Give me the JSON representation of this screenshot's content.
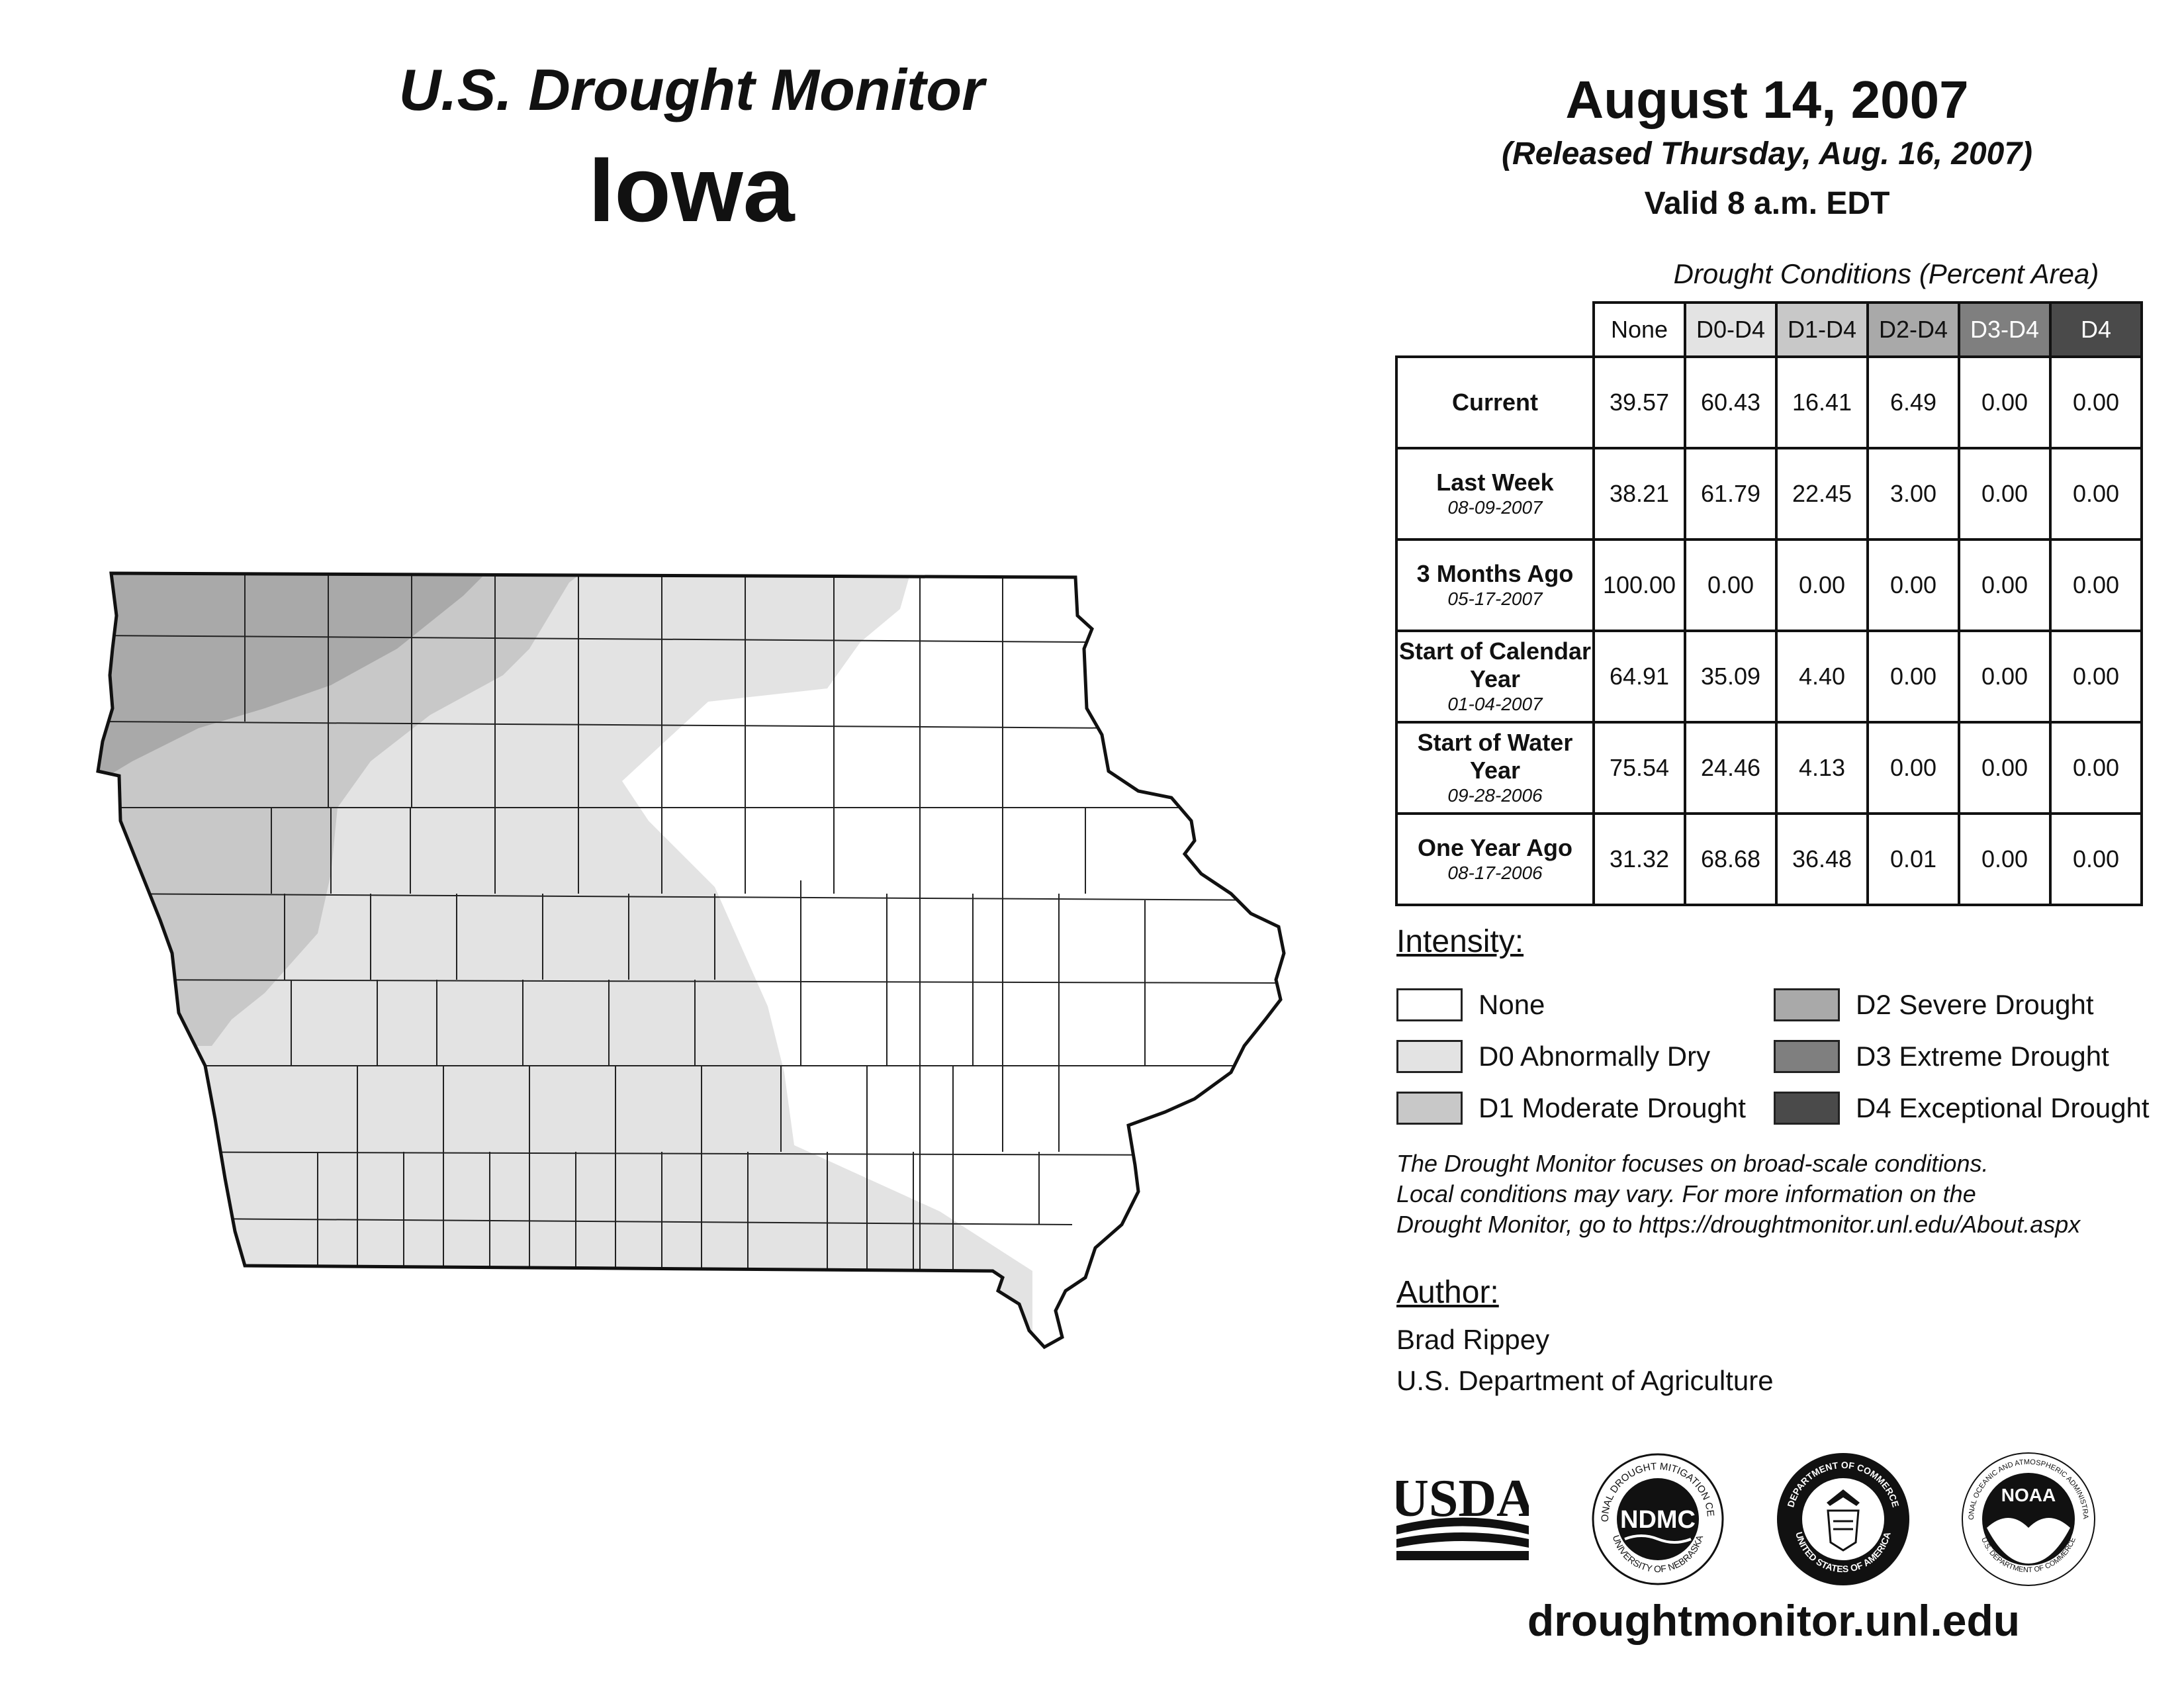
{
  "header": {
    "title": "U.S. Drought Monitor",
    "state": "Iowa",
    "date": "August 14, 2007",
    "released": "(Released Thursday, Aug. 16, 2007)",
    "valid": "Valid 8 a.m. EDT"
  },
  "stats": {
    "caption": "Drought Conditions (Percent Area)",
    "columns": [
      {
        "label": "None",
        "color": "#ffffff",
        "text_color": "#111111"
      },
      {
        "label": "D0-D4",
        "color": "#e3e3e3",
        "text_color": "#111111"
      },
      {
        "label": "D1-D4",
        "color": "#c8c8c8",
        "text_color": "#111111"
      },
      {
        "label": "D2-D4",
        "color": "#a9a9a9",
        "text_color": "#111111"
      },
      {
        "label": "D3-D4",
        "color": "#7f7f7f",
        "text_color": "#ffffff"
      },
      {
        "label": "D4",
        "color": "#4a4a4a",
        "text_color": "#ffffff"
      }
    ],
    "rows": [
      {
        "label": "Current",
        "date": "",
        "values": [
          "39.57",
          "60.43",
          "16.41",
          "6.49",
          "0.00",
          "0.00"
        ]
      },
      {
        "label": "Last Week",
        "date": "08-09-2007",
        "values": [
          "38.21",
          "61.79",
          "22.45",
          "3.00",
          "0.00",
          "0.00"
        ]
      },
      {
        "label": "3 Months Ago",
        "date": "05-17-2007",
        "values": [
          "100.00",
          "0.00",
          "0.00",
          "0.00",
          "0.00",
          "0.00"
        ]
      },
      {
        "label": "Start of Calendar Year",
        "date": "01-04-2007",
        "values": [
          "64.91",
          "35.09",
          "4.40",
          "0.00",
          "0.00",
          "0.00"
        ]
      },
      {
        "label": "Start of Water Year",
        "date": "09-28-2006",
        "values": [
          "75.54",
          "24.46",
          "4.13",
          "0.00",
          "0.00",
          "0.00"
        ]
      },
      {
        "label": "One Year Ago",
        "date": "08-17-2006",
        "values": [
          "31.32",
          "68.68",
          "36.48",
          "0.01",
          "0.00",
          "0.00"
        ]
      }
    ]
  },
  "legend": {
    "heading": "Intensity:",
    "items": [
      {
        "label": "None",
        "color": "#ffffff"
      },
      {
        "label": "D0 Abnormally Dry",
        "color": "#e3e3e3"
      },
      {
        "label": "D1 Moderate Drought",
        "color": "#c8c8c8"
      },
      {
        "label": "D2 Severe Drought",
        "color": "#a9a9a9"
      },
      {
        "label": "D3 Extreme Drought",
        "color": "#7f7f7f"
      },
      {
        "label": "D4 Exceptional Drought",
        "color": "#4a4a4a"
      }
    ]
  },
  "note": {
    "lines": [
      "The Drought Monitor focuses on broad-scale conditions.",
      "Local conditions may vary. For more information on the",
      "Drought Monitor, go to https://droughtmonitor.unl.edu/About.aspx"
    ]
  },
  "author": {
    "heading": "Author:",
    "name": "Brad Rippey",
    "org": "U.S. Department of Agriculture"
  },
  "logos": {
    "usda": "USDA",
    "ndmc": "NDMC",
    "ndmc_ring": "NATIONAL DROUGHT MITIGATION CENTER",
    "ndmc_ring_bottom": "UNIVERSITY OF NEBRASKA",
    "doc_ring": "DEPARTMENT OF COMMERCE",
    "doc_ring_bottom": "UNITED STATES OF AMERICA",
    "noaa": "NOAA",
    "noaa_ring": "NATIONAL OCEANIC AND ATMOSPHERIC ADMINISTRATION",
    "noaa_ring_bottom": "U.S. DEPARTMENT OF COMMERCE"
  },
  "footer": {
    "url": "droughtmonitor.unl.edu"
  }
}
